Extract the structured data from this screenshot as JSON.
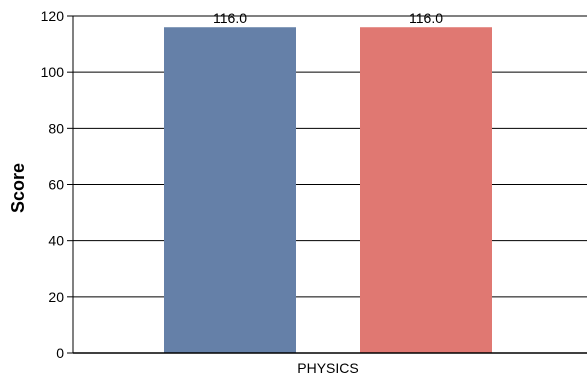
{
  "chart_data": {
    "type": "bar",
    "title": "",
    "xlabel": "",
    "ylabel": "Score",
    "categories": [
      "PHYSICS"
    ],
    "series": [
      {
        "values": [
          116.0
        ],
        "labels": [
          "116.0"
        ],
        "color": "#6580a8"
      },
      {
        "values": [
          116.0
        ],
        "labels": [
          "116.0"
        ],
        "color": "#e07872"
      }
    ],
    "ylim": [
      0,
      120
    ],
    "yticks": [
      "0",
      "20",
      "40",
      "60",
      "80",
      "100",
      "120"
    ],
    "grid": true,
    "legend": "none"
  }
}
